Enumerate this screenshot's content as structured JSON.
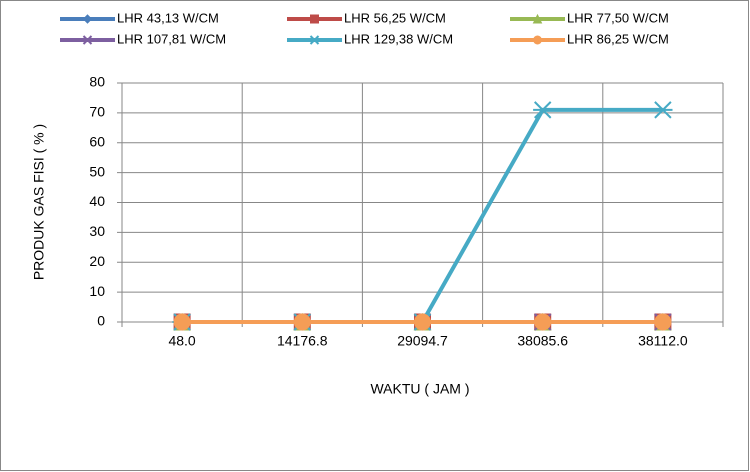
{
  "chart_data": {
    "type": "line",
    "xlabel": "WAKTU ( JAM )",
    "ylabel": "PRODUK GAS FISI  ( % )",
    "categories": [
      "48.0",
      "14176.8",
      "29094.7",
      "38085.6",
      "38112.0"
    ],
    "series": [
      {
        "name": "LHR 43,13 W/CM",
        "color": "#4a7ebb",
        "marker": "diamond",
        "values": [
          0,
          0,
          0,
          0,
          0
        ]
      },
      {
        "name": "LHR 56,25 W/CM",
        "color": "#be4b48",
        "marker": "square",
        "values": [
          0,
          0,
          0,
          0,
          0
        ]
      },
      {
        "name": "LHR 77,50 W/CM",
        "color": "#98b954",
        "marker": "triangle",
        "values": [
          0,
          0,
          0,
          0,
          0
        ]
      },
      {
        "name": "LHR 107,81 W/CM",
        "color": "#7d5fa0",
        "marker": "x",
        "values": [
          0,
          0,
          0,
          0,
          0
        ]
      },
      {
        "name": "LHR 129,38 W/CM",
        "color": "#46aac5",
        "marker": "star",
        "values": [
          0,
          0,
          0,
          71,
          71
        ]
      },
      {
        "name": "LHR 86,25 W/CM",
        "color": "#f59d56",
        "marker": "circle",
        "values": [
          0,
          0,
          0,
          0,
          0
        ]
      }
    ],
    "ylim": [
      0,
      80
    ],
    "yticks": [
      0,
      10,
      20,
      30,
      40,
      50,
      60,
      70,
      80
    ],
    "grid": true,
    "legend": "top"
  }
}
